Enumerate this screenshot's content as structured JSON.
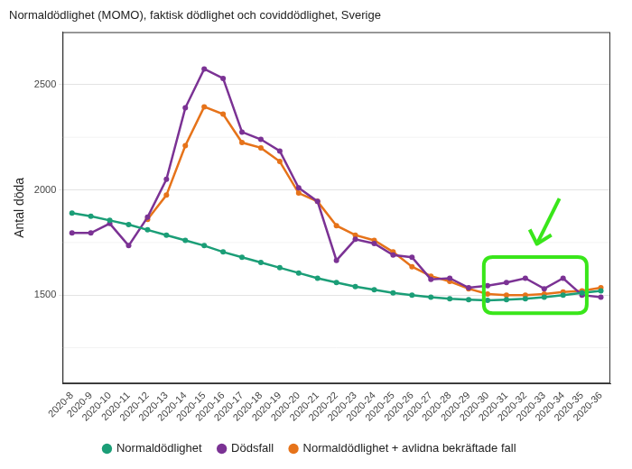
{
  "chart_data": {
    "type": "line",
    "title": "Normaldödlighet (MOMO), faktisk dödlighet och coviddödlighet, Sverige",
    "y_label": "Antal döda",
    "categories": [
      "2020-8",
      "2020-9",
      "2020-10",
      "2020-11",
      "2020-12",
      "2020-13",
      "2020-14",
      "2020-15",
      "2020-16",
      "2020-17",
      "2020-18",
      "2020-19",
      "2020-20",
      "2020-21",
      "2020-22",
      "2020-23",
      "2020-24",
      "2020-25",
      "2020-26",
      "2020-27",
      "2020-28",
      "2020-29",
      "2020-30",
      "2020-31",
      "2020-32",
      "2020-33",
      "2020-34",
      "2020-35",
      "2020-36"
    ],
    "series": [
      {
        "name": "Normaldödlighet",
        "color": "#1b9e77",
        "marker": "circle",
        "line_style": "solid",
        "values": [
          1890,
          1875,
          1855,
          1835,
          1810,
          1785,
          1760,
          1735,
          1705,
          1680,
          1655,
          1630,
          1605,
          1580,
          1560,
          1540,
          1525,
          1510,
          1500,
          1490,
          1482,
          1478,
          1475,
          1478,
          1482,
          1490,
          1500,
          1510,
          1520
        ]
      },
      {
        "name": "Dödsfall",
        "color": "#7b3294",
        "marker": "circle",
        "line_style": "solid",
        "values": [
          1795,
          1795,
          1840,
          1735,
          1870,
          2050,
          2390,
          2575,
          2530,
          2275,
          2240,
          2185,
          2010,
          1945,
          1665,
          1765,
          1745,
          1690,
          1680,
          1575,
          1580,
          1535,
          1545,
          1560,
          1580,
          1530,
          1580,
          1500,
          1490
        ]
      },
      {
        "name": "Normaldödlighet + avlidna bekräftade fall",
        "color": "#e6731a",
        "marker": "circle",
        "line_style": "solid",
        "values": [
          null,
          null,
          null,
          null,
          1860,
          1975,
          2210,
          2395,
          2360,
          2225,
          2200,
          2135,
          1985,
          1945,
          1830,
          1785,
          1760,
          1705,
          1635,
          1590,
          1565,
          1530,
          1505,
          1500,
          1500,
          1505,
          1515,
          1520,
          1535
        ]
      }
    ],
    "ylim": [
      1080,
      2750
    ],
    "yticks": [
      1500,
      2000,
      2500
    ],
    "grid": true,
    "legend": "bottom"
  }
}
